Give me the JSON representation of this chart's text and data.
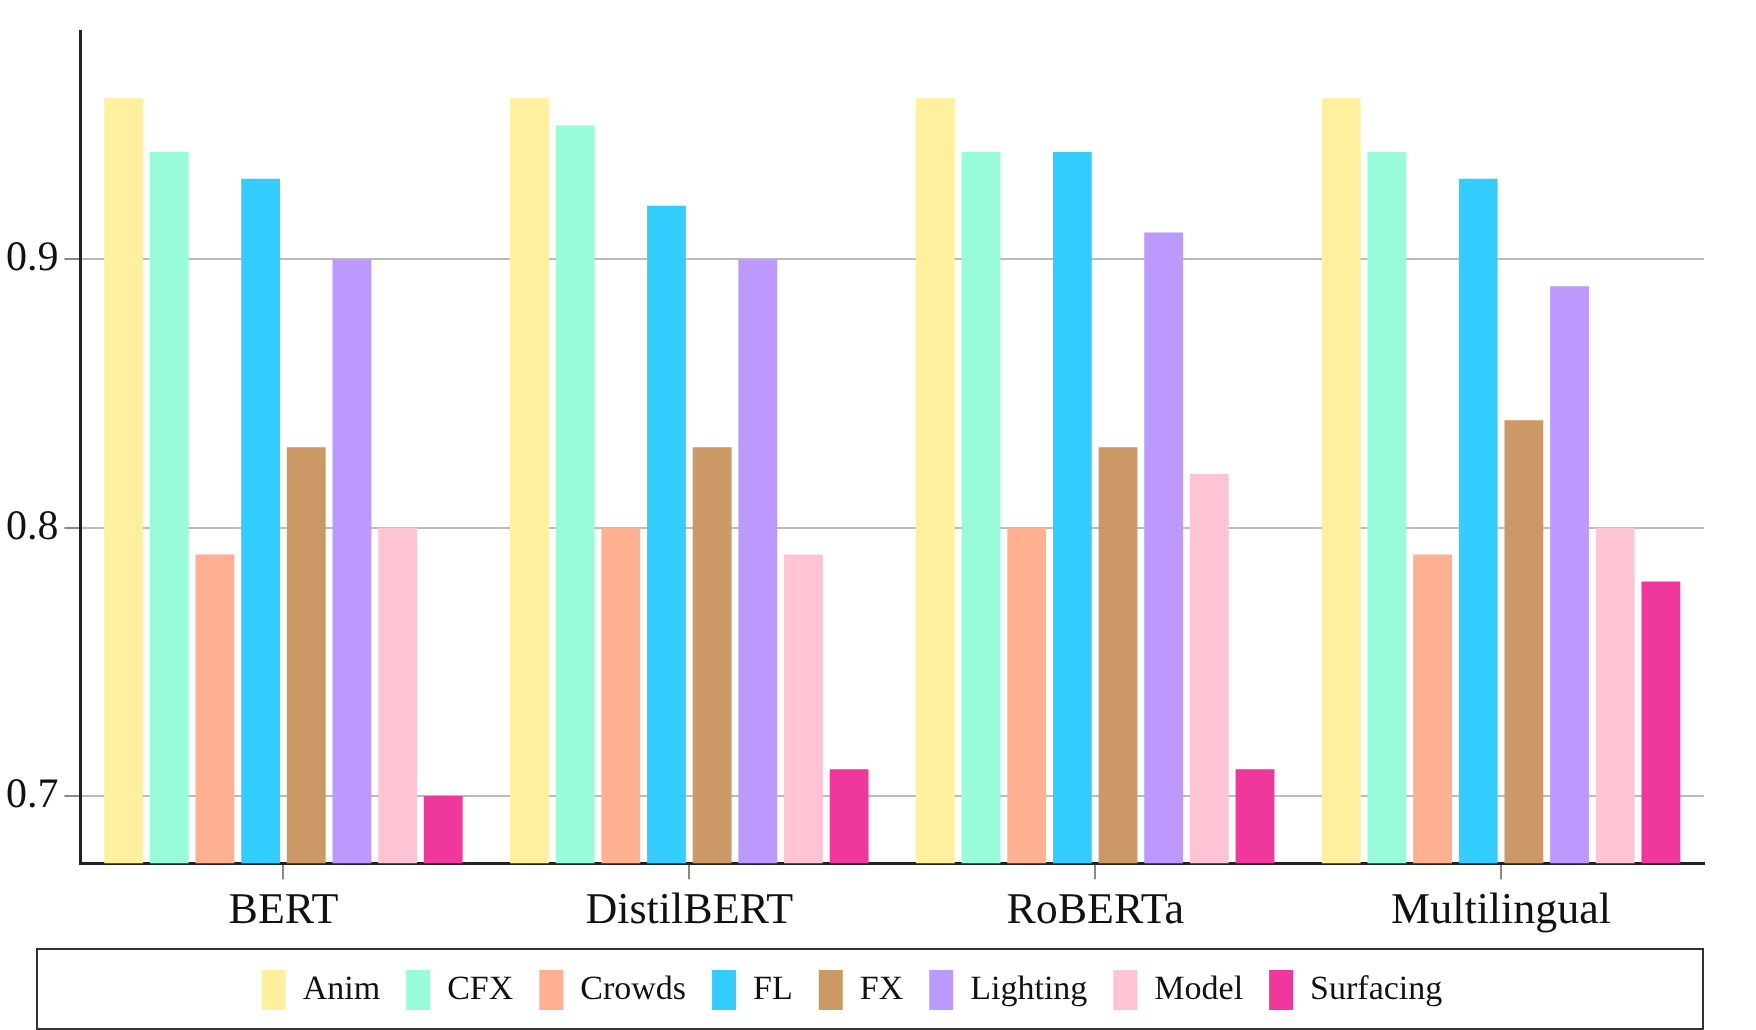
{
  "chart_data": {
    "type": "bar",
    "categories": [
      "BERT",
      "DistilBERT",
      "RoBERTa",
      "Multilingual"
    ],
    "series": [
      {
        "name": "Anim",
        "color": "#fff0a0",
        "values": [
          0.96,
          0.96,
          0.96,
          0.96
        ]
      },
      {
        "name": "CFX",
        "color": "#98fcd8",
        "values": [
          0.94,
          0.95,
          0.94,
          0.94
        ]
      },
      {
        "name": "Crowds",
        "color": "#ffb090",
        "values": [
          0.79,
          0.8,
          0.8,
          0.79
        ]
      },
      {
        "name": "FL",
        "color": "#33ccff",
        "values": [
          0.93,
          0.92,
          0.94,
          0.93
        ]
      },
      {
        "name": "FX",
        "color": "#cc9966",
        "values": [
          0.83,
          0.83,
          0.83,
          0.84
        ]
      },
      {
        "name": "Lighting",
        "color": "#bb99ff",
        "values": [
          0.9,
          0.9,
          0.91,
          0.89
        ]
      },
      {
        "name": "Model",
        "color": "#ffc4d4",
        "values": [
          0.8,
          0.79,
          0.82,
          0.8
        ]
      },
      {
        "name": "Surfacing",
        "color": "#f0379b",
        "values": [
          0.7,
          0.71,
          0.71,
          0.78
        ]
      }
    ],
    "ylim": [
      0.675,
      0.985
    ],
    "yticks": [
      0.7,
      0.8,
      0.9
    ],
    "grid": "y",
    "legend": "bottom"
  }
}
